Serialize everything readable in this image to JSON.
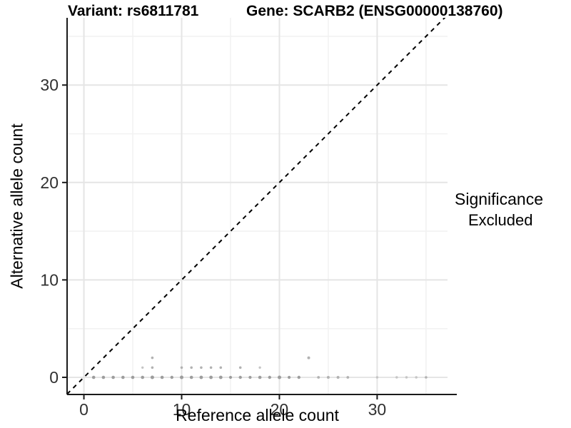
{
  "titles": {
    "variant": "Variant: rs6811781",
    "gene": "Gene: SCARB2 (ENSG00000138760)"
  },
  "axes": {
    "x_label": "Reference allele count",
    "y_label": "Alternative allele count"
  },
  "legend": {
    "title": "Significance",
    "items": [
      {
        "label": "Excluded",
        "color": "#a9a9a9"
      }
    ]
  },
  "colors": {
    "background": "#ffffff",
    "axis_line": "#1a1a1a",
    "tick_label": "#303030",
    "grid_major": "#e5e5e5",
    "grid_minor": "#f2f2f2",
    "reference_line": "#000000",
    "point_large": "#9d9d9d",
    "point_medium": "#b2b2b2",
    "point_small": "#c5c5c5"
  },
  "chart_data": {
    "type": "scatter",
    "title": "Variant: rs6811781 | Gene: SCARB2 (ENSG00000138760)",
    "xlabel": "Reference allele count",
    "ylabel": "Alternative allele count",
    "xlim": [
      -1.72,
      37.2
    ],
    "ylim": [
      -1.76,
      36.9
    ],
    "x_ticks": [
      0,
      10,
      20,
      30
    ],
    "y_ticks": [
      0,
      10,
      20,
      30
    ],
    "x_minor_ticks": [
      5,
      15,
      25,
      35
    ],
    "y_minor_ticks": [
      5,
      15,
      25,
      35
    ],
    "grid": true,
    "legend_position": "right",
    "legend_title": "Significance",
    "reference_line": {
      "type": "identity",
      "slope": 1,
      "intercept": 0,
      "style": "dashed",
      "color": "#000000"
    },
    "series": [
      {
        "name": "Excluded",
        "point_format": "[ref_count, alt_count, radius_px]",
        "points": [
          [
            1,
            0,
            2.3
          ],
          [
            2,
            0,
            2.3
          ],
          [
            3,
            0,
            2.3
          ],
          [
            4,
            0,
            2.3
          ],
          [
            5,
            0,
            2.3
          ],
          [
            6,
            0,
            2.3
          ],
          [
            7,
            0,
            2.5
          ],
          [
            8,
            0,
            2.3
          ],
          [
            9,
            0,
            2.2
          ],
          [
            10,
            0,
            2.5
          ],
          [
            11,
            0,
            2.3
          ],
          [
            12,
            0,
            2.4
          ],
          [
            13,
            0,
            2.4
          ],
          [
            14,
            0,
            2.4
          ],
          [
            15,
            0,
            2.1
          ],
          [
            16,
            0,
            2.2
          ],
          [
            17,
            0,
            2.1
          ],
          [
            18,
            0,
            2.3
          ],
          [
            19,
            0,
            2.2
          ],
          [
            20,
            0,
            2.5
          ],
          [
            21,
            0,
            2.1
          ],
          [
            22,
            0,
            2.2
          ],
          [
            24,
            0,
            1.9
          ],
          [
            25,
            0,
            2.0
          ],
          [
            26,
            0,
            2.0
          ],
          [
            27,
            0,
            1.9
          ],
          [
            30,
            0,
            1.7
          ],
          [
            32,
            0,
            1.7
          ],
          [
            33,
            0,
            1.7
          ],
          [
            34,
            0,
            1.7
          ],
          [
            35,
            0,
            1.8
          ],
          [
            6,
            1,
            1.7
          ],
          [
            7,
            1,
            1.8
          ],
          [
            10,
            1,
            1.8
          ],
          [
            11,
            1,
            1.8
          ],
          [
            12,
            1,
            1.8
          ],
          [
            13,
            1,
            1.8
          ],
          [
            14,
            1,
            1.8
          ],
          [
            16,
            1,
            1.8
          ],
          [
            18,
            1,
            1.7
          ],
          [
            7,
            2,
            1.8
          ],
          [
            23,
            2,
            2.0
          ]
        ]
      }
    ]
  }
}
